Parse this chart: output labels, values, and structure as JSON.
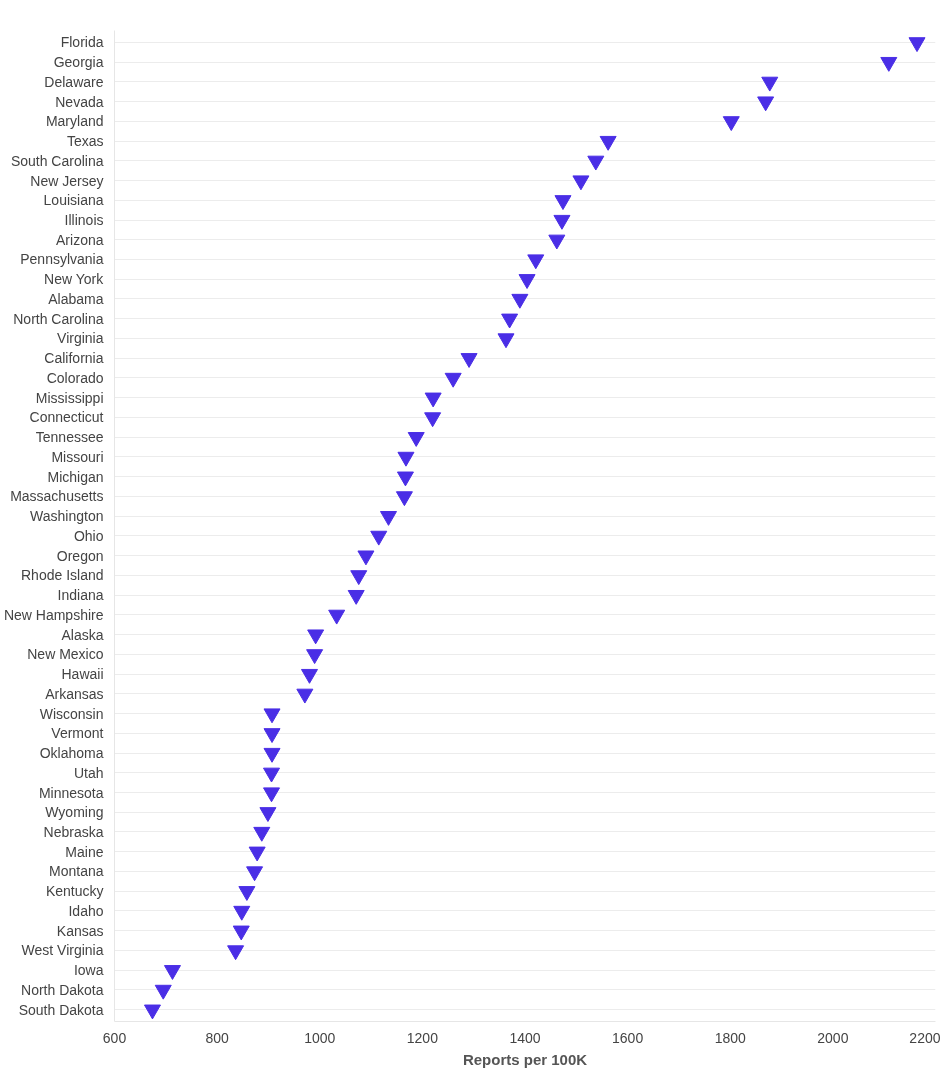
{
  "chart_data": {
    "type": "scatter",
    "xlabel": "Reports per 100K",
    "orientation": "horizontal",
    "categories": [
      "Florida",
      "Georgia",
      "Delaware",
      "Nevada",
      "Maryland",
      "Texas",
      "South Carolina",
      "New Jersey",
      "Louisiana",
      "Illinois",
      "Arizona",
      "Pennsylvania",
      "New York",
      "Alabama",
      "North Carolina",
      "Virginia",
      "California",
      "Colorado",
      "Mississippi",
      "Connecticut",
      "Tennessee",
      "Missouri",
      "Michigan",
      "Massachusetts",
      "Washington",
      "Ohio",
      "Oregon",
      "Rhode Island",
      "Indiana",
      "New Hampshire",
      "Alaska",
      "New Mexico",
      "Hawaii",
      "Arkansas",
      "Wisconsin",
      "Vermont",
      "Oklahoma",
      "Utah",
      "Minnesota",
      "Wyoming",
      "Nebraska",
      "Maine",
      "Montana",
      "Kentucky",
      "Idaho",
      "Kansas",
      "West Virginia",
      "Iowa",
      "North Dakota",
      "South Dakota"
    ],
    "series": [
      {
        "color": "#4a2ee6",
        "values": [
          2164,
          2109,
          1877,
          1869,
          1802,
          1562,
          1538,
          1509,
          1474,
          1472,
          1462,
          1421,
          1404,
          1390,
          1370,
          1363,
          1291,
          1260,
          1221,
          1220,
          1188,
          1168,
          1167,
          1165,
          1134,
          1115,
          1090,
          1076,
          1071,
          1033,
          992,
          990,
          980,
          971,
          907,
          907,
          907,
          906,
          906,
          899,
          887,
          878,
          873,
          858,
          848,
          847,
          836,
          713,
          695,
          674
        ]
      }
    ],
    "xlim": [
      600,
      2200
    ],
    "xticks": [
      600,
      800,
      1000,
      1200,
      1400,
      1600,
      1800,
      2000,
      2200
    ],
    "grid": "y",
    "marker": "triangle"
  }
}
